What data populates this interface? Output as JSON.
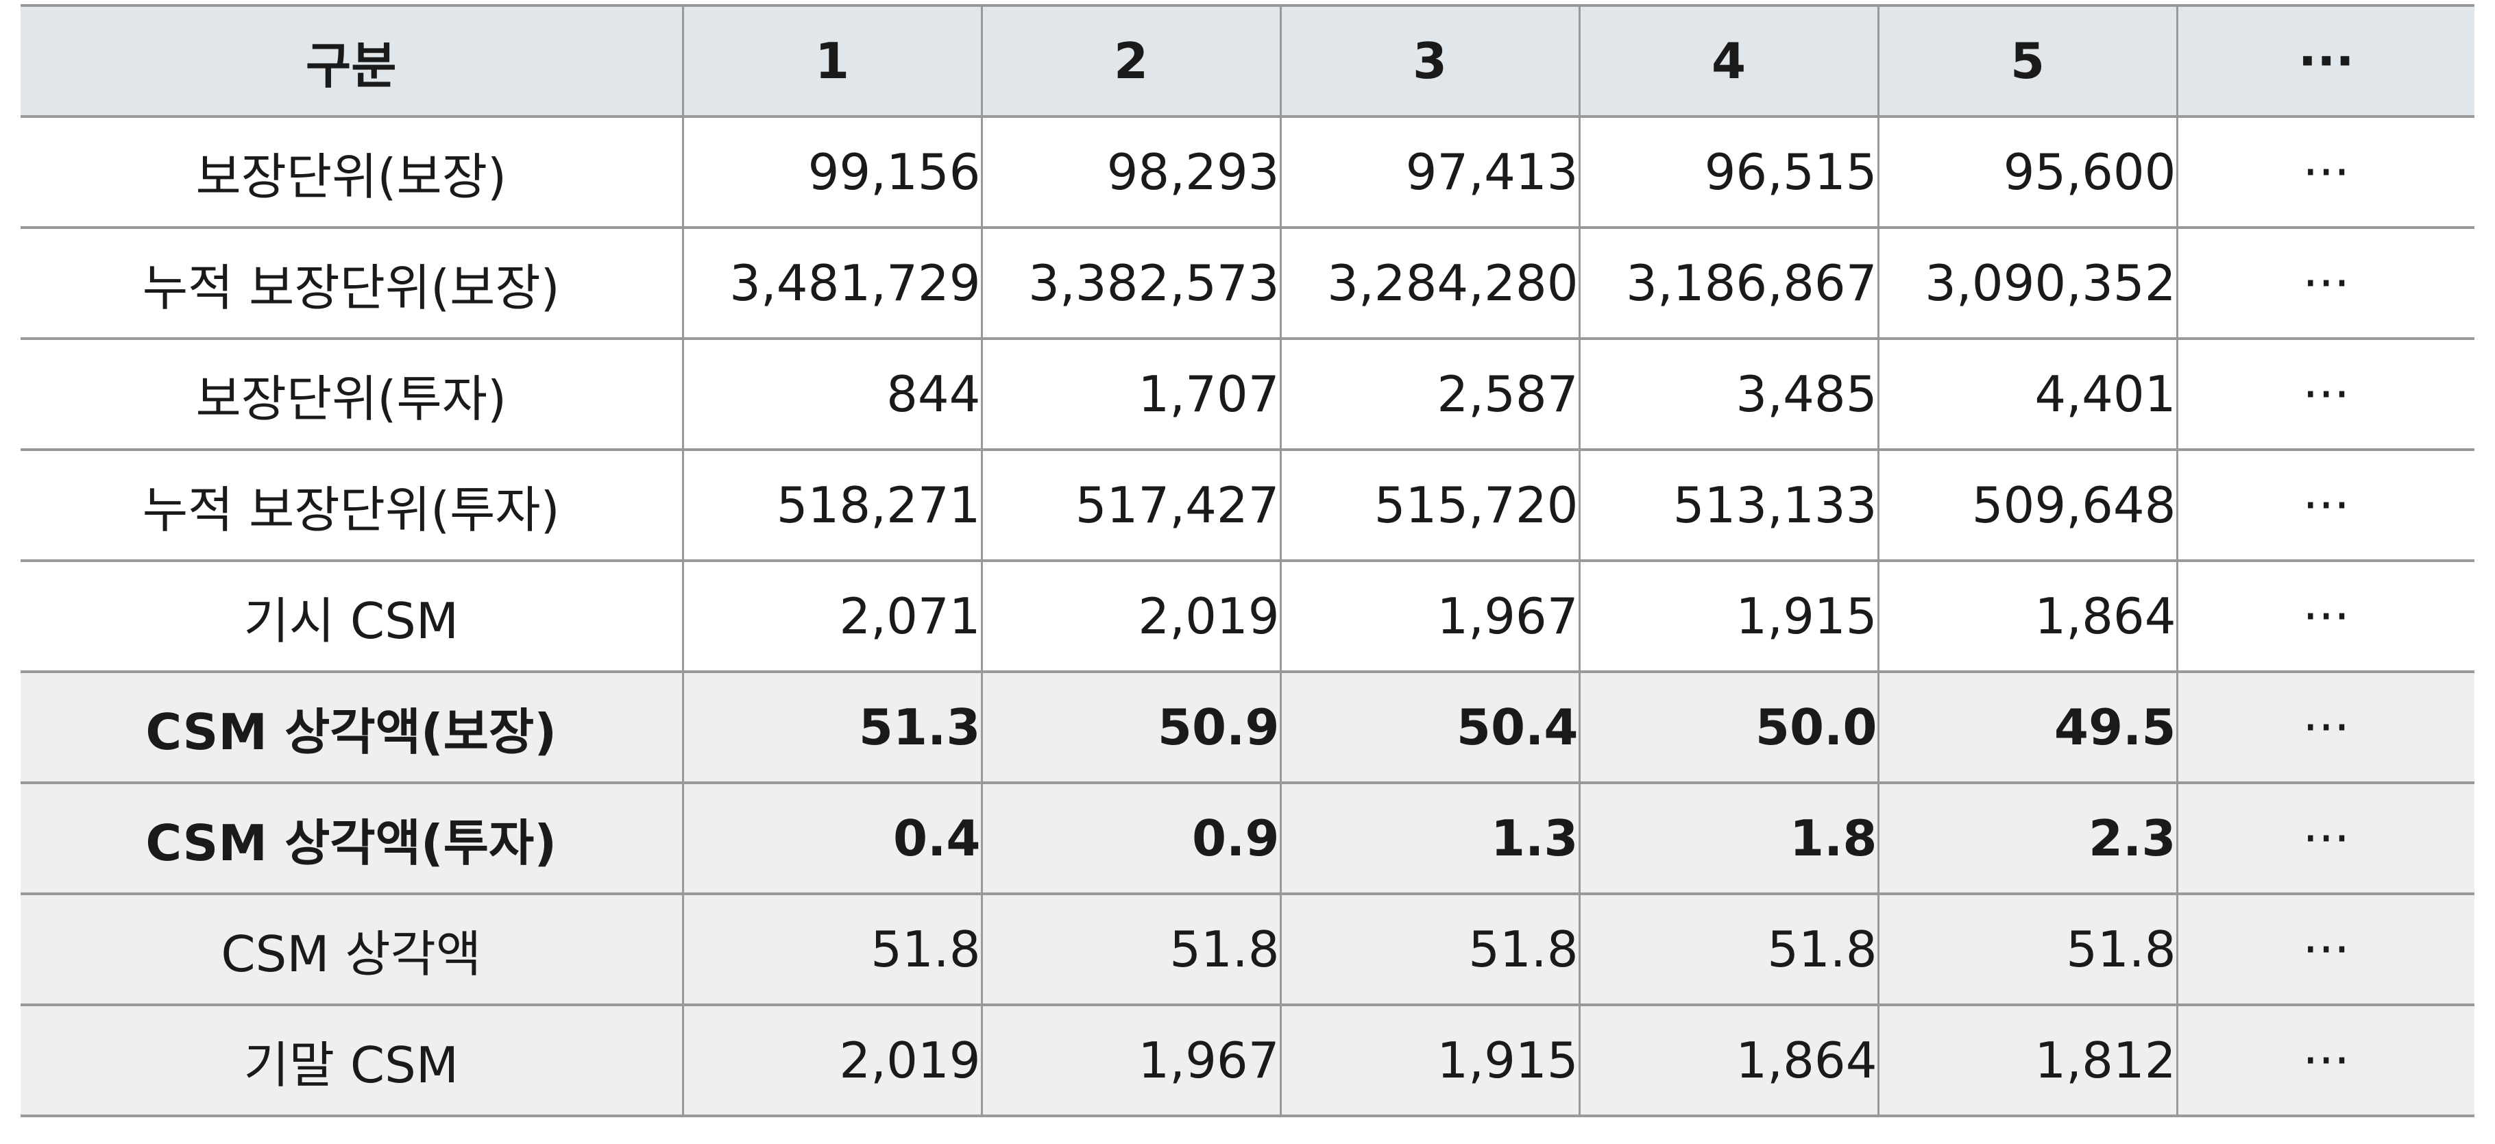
{
  "table": {
    "header": [
      "구분",
      "1",
      "2",
      "3",
      "4",
      "5",
      "···"
    ],
    "rows": [
      {
        "label": "보장단위(보장)",
        "values": [
          "99,156",
          "98,293",
          "97,413",
          "96,515",
          "95,600"
        ],
        "more": "···"
      },
      {
        "label": "누적 보장단위(보장)",
        "values": [
          "3,481,729",
          "3,382,573",
          "3,284,280",
          "3,186,867",
          "3,090,352"
        ],
        "more": "···"
      },
      {
        "label": "보장단위(투자)",
        "values": [
          "844",
          "1,707",
          "2,587",
          "3,485",
          "4,401"
        ],
        "more": "···"
      },
      {
        "label": "누적 보장단위(투자)",
        "values": [
          "518,271",
          "517,427",
          "515,720",
          "513,133",
          "509,648"
        ],
        "more": "···"
      },
      {
        "label": "기시 CSM",
        "values": [
          "2,071",
          "2,019",
          "1,967",
          "1,915",
          "1,864"
        ],
        "more": "···"
      },
      {
        "label": "CSM 상각액(보장)",
        "values": [
          "51.3",
          "50.9",
          "50.4",
          "50.0",
          "49.5"
        ],
        "more": "···"
      },
      {
        "label": "CSM 상각액(투자)",
        "values": [
          "0.4",
          "0.9",
          "1.3",
          "1.8",
          "2.3"
        ],
        "more": "···"
      },
      {
        "label": "CSM 상각액",
        "values": [
          "51.8",
          "51.8",
          "51.8",
          "51.8",
          "51.8"
        ],
        "more": "···"
      },
      {
        "label": "기말 CSM",
        "values": [
          "2,019",
          "1,967",
          "1,915",
          "1,864",
          "1,812"
        ],
        "more": "···"
      }
    ]
  },
  "colors": {
    "header_bg": "#e1e6ea",
    "shaded_bg": "#efefef",
    "border": "#999999",
    "text": "#1a1a1a"
  }
}
